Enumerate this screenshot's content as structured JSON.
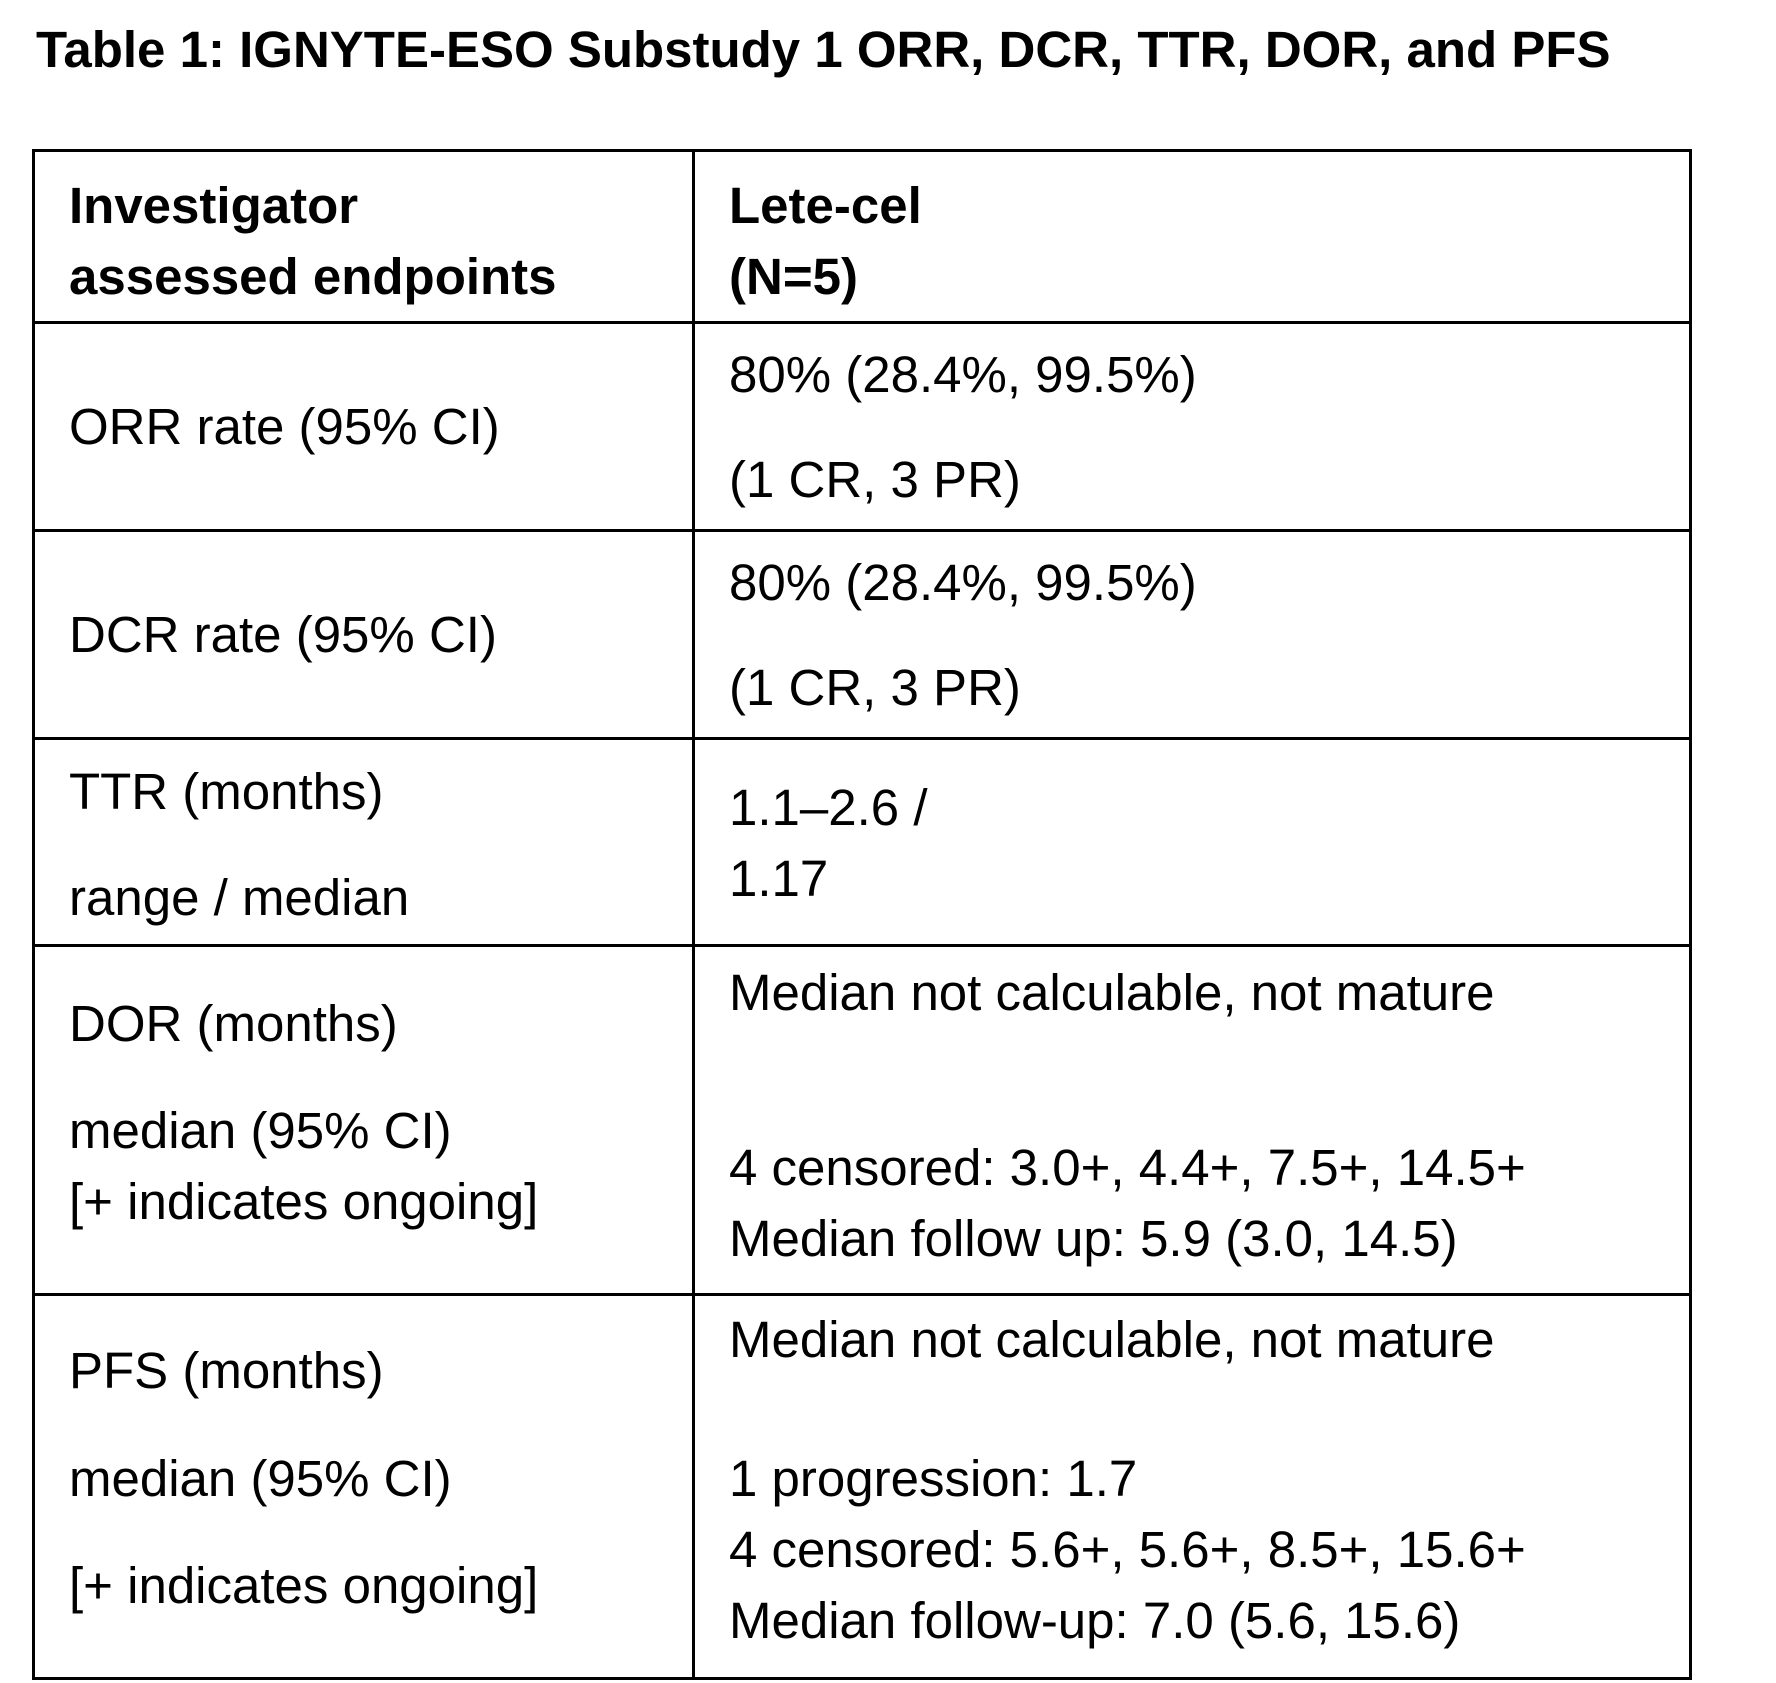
{
  "title": "Table 1: IGNYTE-ESO Substudy 1 ORR, DCR, TTR, DOR, and PFS",
  "header": {
    "col1": [
      "Investigator",
      "assessed endpoints"
    ],
    "col2": [
      "Lete-cel",
      "(N=5)"
    ]
  },
  "rows": [
    {
      "label": [
        "ORR rate (95% CI)"
      ],
      "value": [
        "80% (28.4%, 99.5%)",
        "(1 CR, 3 PR)"
      ]
    },
    {
      "label": [
        "DCR rate (95% CI)"
      ],
      "value": [
        "80% (28.4%, 99.5%)",
        "(1 CR, 3 PR)"
      ]
    },
    {
      "label": [
        "TTR (months)",
        "range / median"
      ],
      "value": [
        "1.1–2.6 /",
        "1.17"
      ]
    },
    {
      "label": [
        "DOR (months)",
        "median (95% CI)",
        "[+ indicates ongoing]"
      ],
      "value": [
        "Median not calculable, not mature",
        "4 censored: 3.0+, 4.4+, 7.5+, 14.5+",
        "Median follow up: 5.9 (3.0, 14.5)"
      ]
    },
    {
      "label": [
        "PFS (months)",
        "median (95% CI)",
        "[+ indicates ongoing]"
      ],
      "value": [
        "Median not calculable, not mature",
        "1 progression: 1.7",
        "4 censored: 5.6+, 5.6+, 8.5+, 15.6+",
        "Median follow-up: 7.0 (5.6, 15.6)"
      ]
    }
  ]
}
